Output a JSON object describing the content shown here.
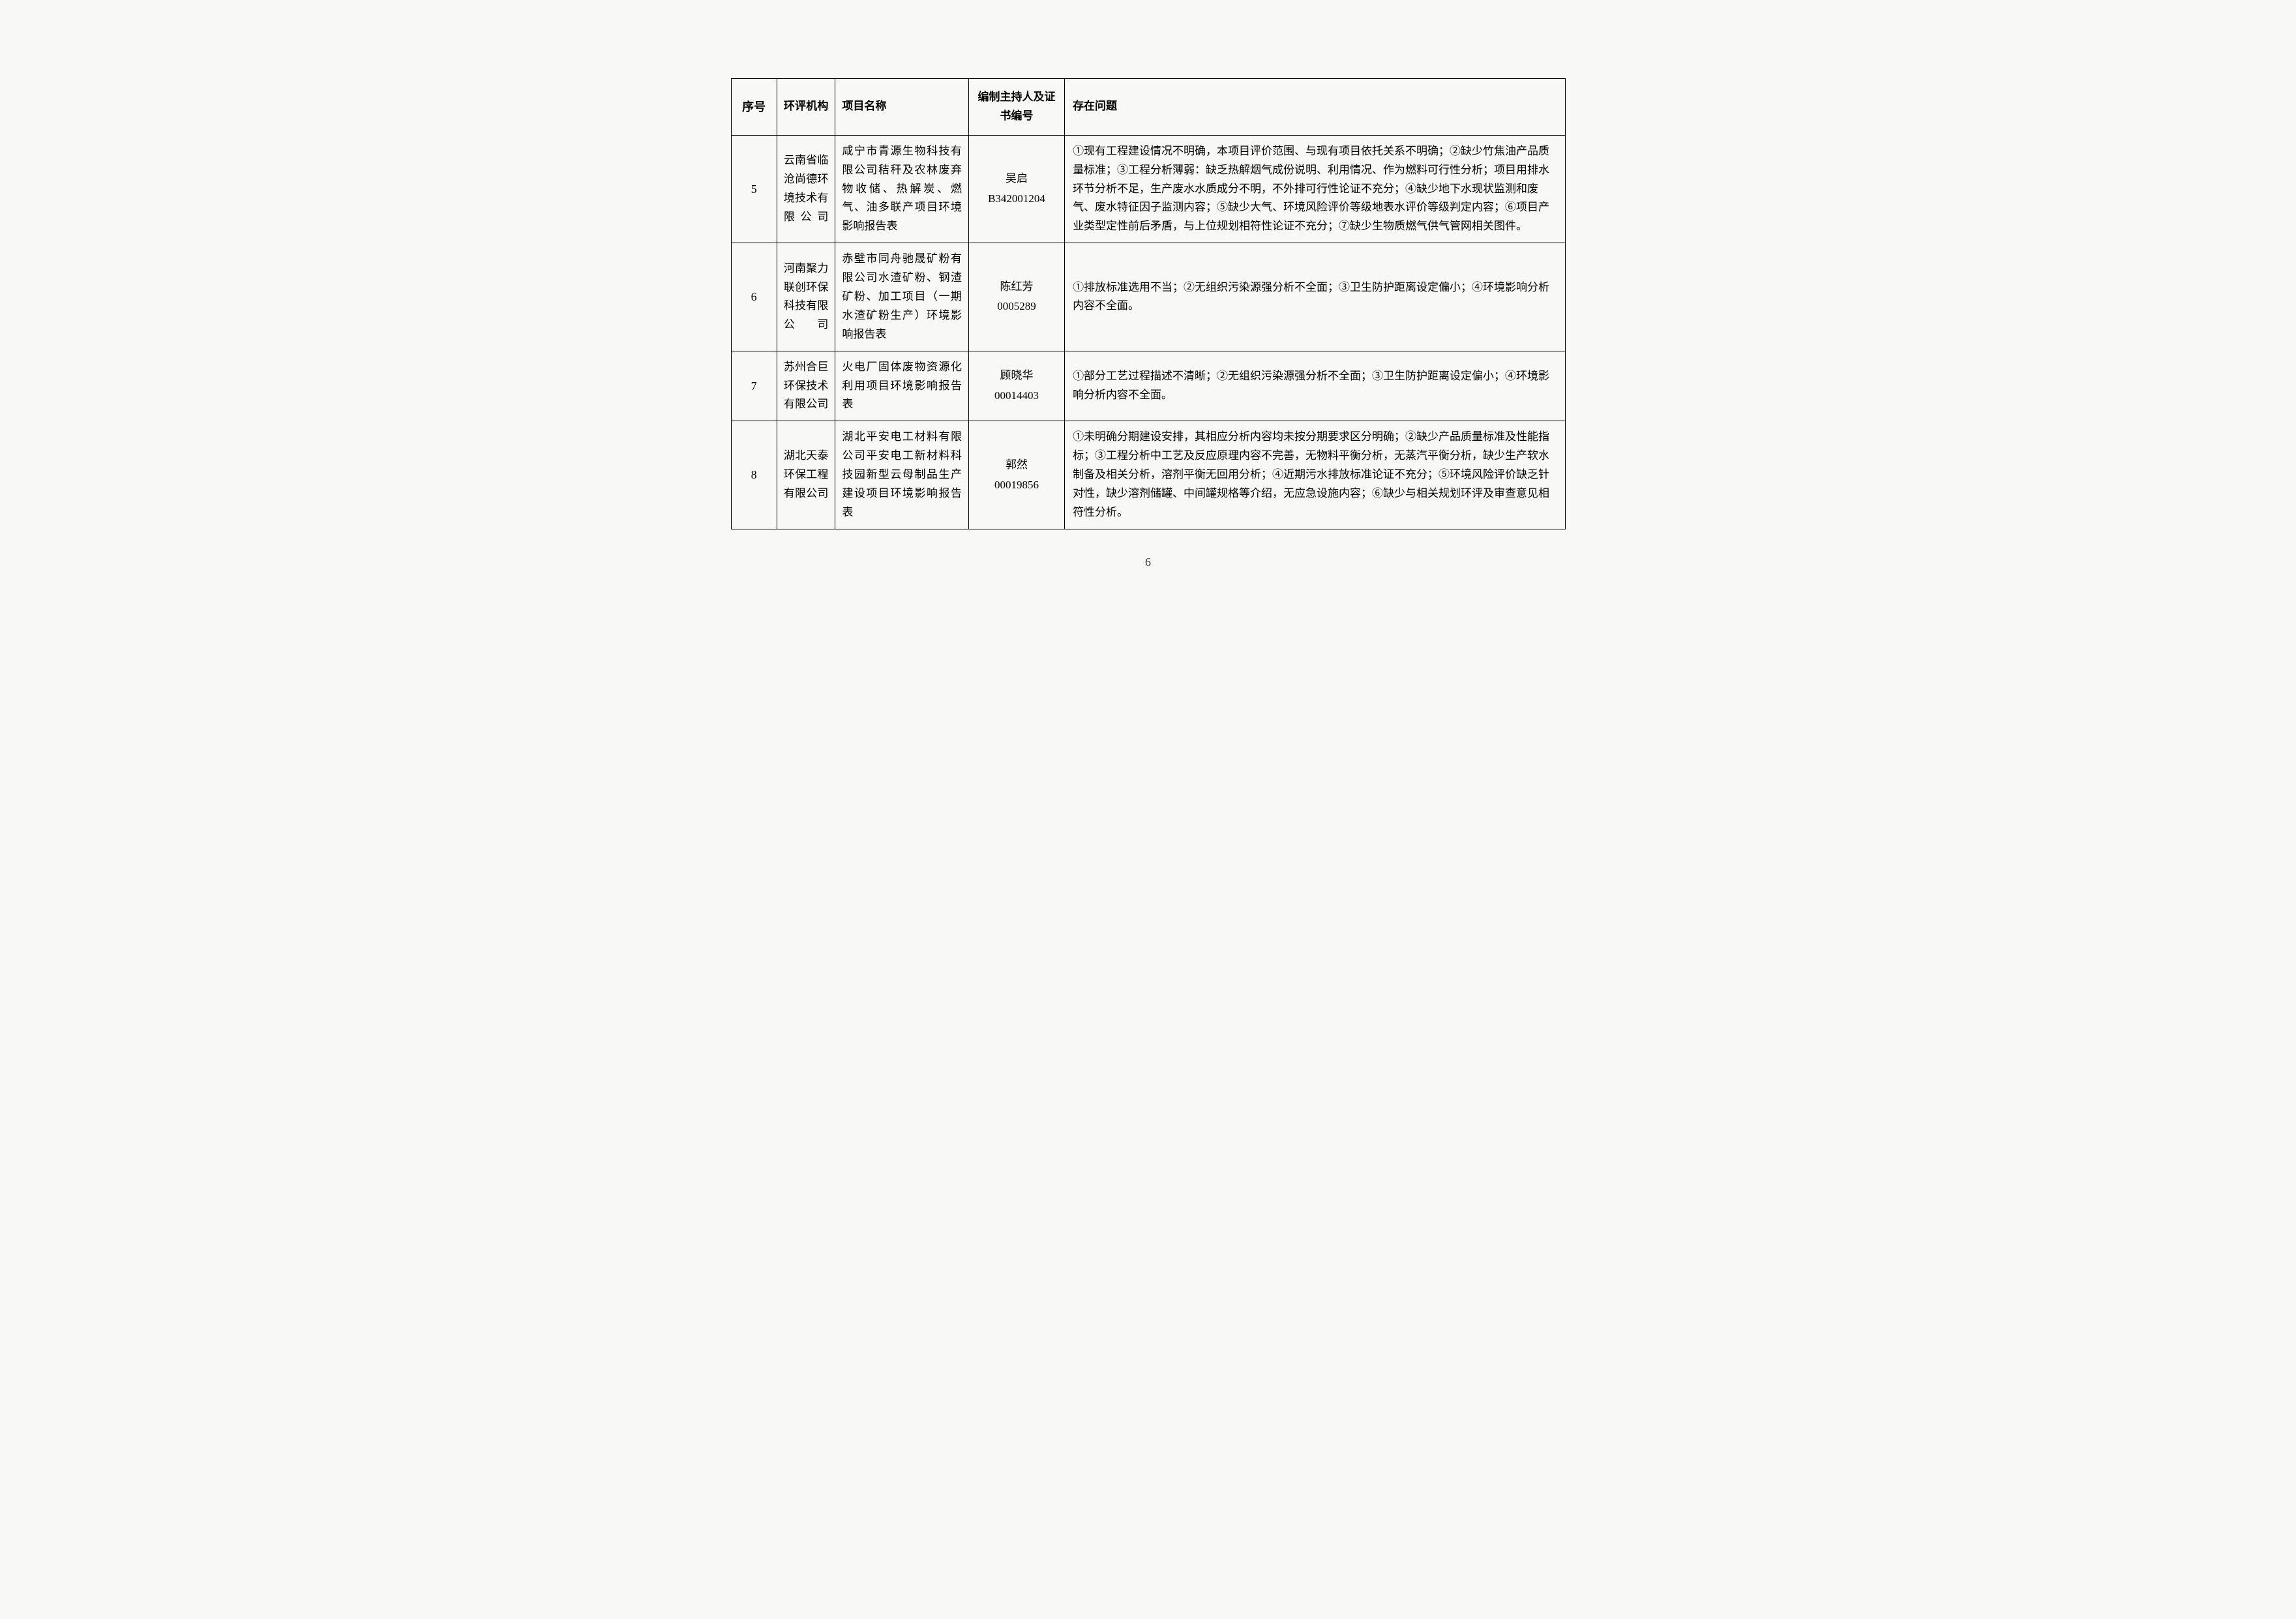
{
  "table": {
    "headers": {
      "seq": "序号",
      "org": "环评机构",
      "project": "项目名称",
      "person": "编制主持人及证书编号",
      "issues": "存在问题"
    },
    "rows": [
      {
        "seq": "5",
        "org": "云南省临沧尚德环境技术有限公司",
        "project": "咸宁市青源生物科技有限公司秸秆及农林废弃物收储、热解炭、燃气、油多联产项目环境影响报告表",
        "person_name": "吴启",
        "person_cert": "B342001204",
        "issues": "①现有工程建设情况不明确，本项目评价范围、与现有项目依托关系不明确；②缺少竹焦油产品质量标准；③工程分析薄弱：缺乏热解烟气成份说明、利用情况、作为燃料可行性分析；项目用排水环节分析不足，生产废水水质成分不明，不外排可行性论证不充分；④缺少地下水现状监测和废气、废水特征因子监测内容；⑤缺少大气、环境风险评价等级地表水评价等级判定内容；⑥项目产业类型定性前后矛盾，与上位规划相符性论证不充分；⑦缺少生物质燃气供气管网相关图件。"
      },
      {
        "seq": "6",
        "org": "河南聚力联创环保科技有限公司",
        "project": "赤壁市同舟驰晟矿粉有限公司水渣矿粉、钢渣矿粉、加工项目（一期水渣矿粉生产）环境影响报告表",
        "person_name": "陈红芳",
        "person_cert": "0005289",
        "issues": "①排放标准选用不当；②无组织污染源强分析不全面；③卫生防护距离设定偏小；④环境影响分析内容不全面。"
      },
      {
        "seq": "7",
        "org": "苏州合巨环保技术有限公司",
        "project": "火电厂固体废物资源化利用项目环境影响报告表",
        "person_name": "顾晓华",
        "person_cert": "00014403",
        "issues": "①部分工艺过程描述不清晰；②无组织污染源强分析不全面；③卫生防护距离设定偏小；④环境影响分析内容不全面。"
      },
      {
        "seq": "8",
        "org": "湖北天泰环保工程有限公司",
        "project": "湖北平安电工材料有限公司平安电工新材料科技园新型云母制品生产建设项目环境影响报告表",
        "person_name": "郭然",
        "person_cert": "00019856",
        "issues": "①未明确分期建设安排，其相应分析内容均未按分期要求区分明确；②缺少产品质量标准及性能指标；③工程分析中工艺及反应原理内容不完善，无物料平衡分析，无蒸汽平衡分析，缺少生产软水制备及相关分析，溶剂平衡无回用分析；④近期污水排放标准论证不充分；⑤环境风险评价缺乏针对性，缺少溶剂储罐、中间罐规格等介绍，无应急设施内容；⑥缺少与相关规划环评及审查意见相符性分析。"
      }
    ]
  },
  "page_number": "6"
}
